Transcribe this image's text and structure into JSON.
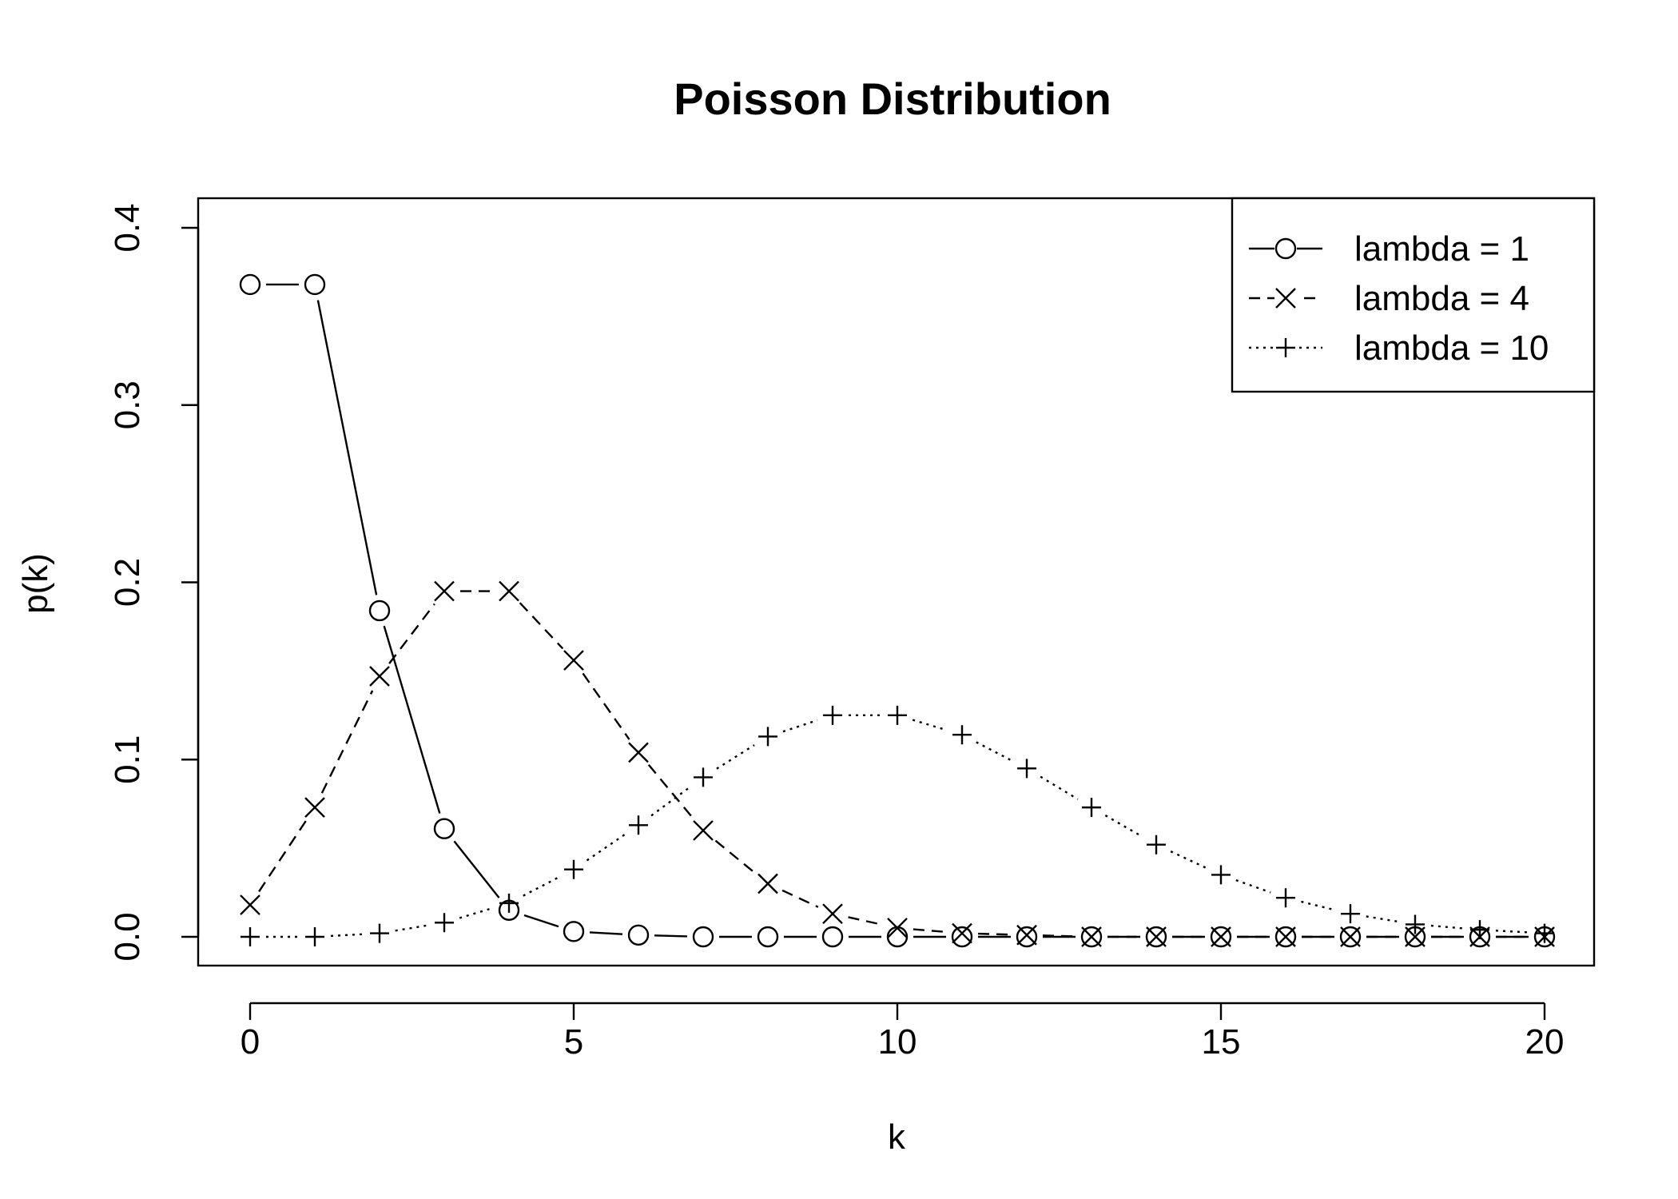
{
  "chart_data": {
    "type": "line",
    "title": "Poisson Distribution",
    "xlabel": "k",
    "ylabel": "p(k)",
    "xlim": [
      0,
      20
    ],
    "ylim": [
      0,
      0.4
    ],
    "x_ticks": [
      0,
      5,
      10,
      15,
      20
    ],
    "y_ticks": [
      0.0,
      0.1,
      0.2,
      0.3,
      0.4
    ],
    "x_tick_labels": [
      "0",
      "5",
      "10",
      "15",
      "20"
    ],
    "y_tick_labels": [
      "0.0",
      "0.1",
      "0.2",
      "0.3",
      "0.4"
    ],
    "grid": false,
    "legend_position": "top-right",
    "x": [
      0,
      1,
      2,
      3,
      4,
      5,
      6,
      7,
      8,
      9,
      10,
      11,
      12,
      13,
      14,
      15,
      16,
      17,
      18,
      19,
      20
    ],
    "series": [
      {
        "name": "lambda = 1",
        "marker": "circle",
        "line_style": "solid",
        "values": [
          0.368,
          0.368,
          0.184,
          0.061,
          0.015,
          0.003,
          0.001,
          0.0,
          0.0,
          0.0,
          0.0,
          0.0,
          0.0,
          0.0,
          0.0,
          0.0,
          0.0,
          0.0,
          0.0,
          0.0,
          0.0
        ]
      },
      {
        "name": "lambda = 4",
        "marker": "x",
        "line_style": "dashed",
        "values": [
          0.018,
          0.073,
          0.147,
          0.195,
          0.195,
          0.156,
          0.104,
          0.06,
          0.03,
          0.013,
          0.005,
          0.002,
          0.001,
          0.0,
          0.0,
          0.0,
          0.0,
          0.0,
          0.0,
          0.0,
          0.0
        ]
      },
      {
        "name": "lambda = 10",
        "marker": "plus",
        "line_style": "dotted",
        "values": [
          0.0,
          0.0,
          0.002,
          0.008,
          0.019,
          0.038,
          0.063,
          0.09,
          0.113,
          0.125,
          0.125,
          0.114,
          0.095,
          0.073,
          0.052,
          0.035,
          0.022,
          0.013,
          0.007,
          0.004,
          0.002
        ]
      }
    ],
    "colors": {
      "ink": "#000000",
      "background": "#ffffff"
    }
  }
}
